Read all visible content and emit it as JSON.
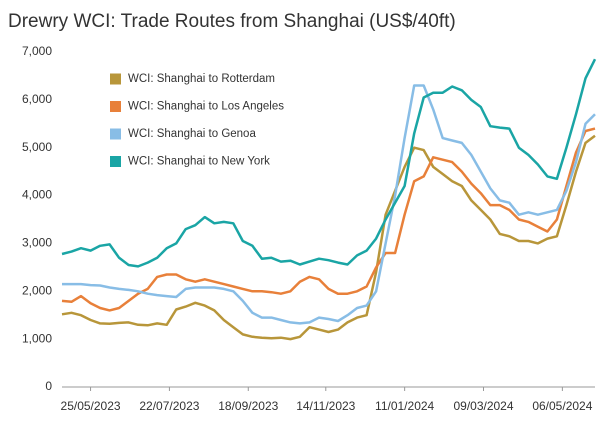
{
  "chart_data": {
    "type": "line",
    "title": "Drewry WCI: Trade Routes from Shanghai (US$/40ft)",
    "x": [
      "04/05/2023",
      "11/05/2023",
      "18/05/2023",
      "25/05/2023",
      "01/06/2023",
      "08/06/2023",
      "15/06/2023",
      "22/06/2023",
      "29/06/2023",
      "06/07/2023",
      "13/07/2023",
      "20/07/2023",
      "27/07/2023",
      "03/08/2023",
      "10/08/2023",
      "17/08/2023",
      "24/08/2023",
      "31/08/2023",
      "07/09/2023",
      "14/09/2023",
      "21/09/2023",
      "28/09/2023",
      "05/10/2023",
      "12/10/2023",
      "19/10/2023",
      "26/10/2023",
      "02/11/2023",
      "09/11/2023",
      "16/11/2023",
      "23/11/2023",
      "30/11/2023",
      "07/12/2023",
      "14/12/2023",
      "21/12/2023",
      "28/12/2023",
      "04/01/2024",
      "11/01/2024",
      "18/01/2024",
      "25/01/2024",
      "01/02/2024",
      "08/02/2024",
      "15/02/2024",
      "22/02/2024",
      "29/02/2024",
      "07/03/2024",
      "14/03/2024",
      "21/03/2024",
      "28/03/2024",
      "04/04/2024",
      "11/04/2024",
      "18/04/2024",
      "25/04/2024",
      "02/05/2024",
      "09/05/2024",
      "16/05/2024",
      "23/05/2024",
      "30/05/2024"
    ],
    "xlim": [
      "04/05/2023",
      "30/05/2024"
    ],
    "xticks": [
      "25/05/2023",
      "22/07/2023",
      "18/09/2023",
      "14/11/2023",
      "11/01/2024",
      "09/03/2024",
      "06/05/2024"
    ],
    "ylim": [
      0,
      7000
    ],
    "yticks": [
      0,
      {
        "value": 1000,
        "label": "1,000"
      },
      {
        "value": 2000,
        "label": "2,000"
      },
      {
        "value": 3000,
        "label": "3,000"
      },
      {
        "value": 4000,
        "label": "4,000"
      },
      {
        "value": 5000,
        "label": "5,000"
      },
      {
        "value": 6000,
        "label": "6,000"
      },
      {
        "value": 7000,
        "label": "7,000"
      }
    ],
    "grid": false,
    "series": [
      {
        "name": "WCI: Shanghai to Rotterdam",
        "color": "#b8963a",
        "values": [
          1520,
          1550,
          1500,
          1400,
          1330,
          1320,
          1340,
          1350,
          1300,
          1290,
          1330,
          1300,
          1620,
          1680,
          1760,
          1700,
          1600,
          1400,
          1250,
          1100,
          1050,
          1030,
          1020,
          1030,
          1000,
          1050,
          1250,
          1200,
          1150,
          1200,
          1350,
          1450,
          1500,
          2400,
          3600,
          4100,
          4600,
          5000,
          4950,
          4600,
          4450,
          4300,
          4200,
          3900,
          3700,
          3500,
          3200,
          3150,
          3050,
          3050,
          3000,
          3100,
          3150,
          3800,
          4500,
          5100,
          5250
        ]
      },
      {
        "name": "WCI: Shanghai to Los Angeles",
        "color": "#e8803a",
        "values": [
          1800,
          1780,
          1900,
          1750,
          1650,
          1600,
          1650,
          1800,
          1950,
          2050,
          2300,
          2350,
          2350,
          2250,
          2200,
          2250,
          2200,
          2150,
          2100,
          2050,
          2000,
          2000,
          1980,
          1950,
          2000,
          2200,
          2300,
          2250,
          2050,
          1950,
          1950,
          2000,
          2100,
          2500,
          2800,
          2800,
          3600,
          4300,
          4400,
          4800,
          4750,
          4700,
          4500,
          4250,
          4050,
          3800,
          3800,
          3700,
          3500,
          3450,
          3350,
          3250,
          3500,
          4200,
          4900,
          5350,
          5400
        ]
      },
      {
        "name": "WCI: Shanghai to Genoa",
        "color": "#88bde6",
        "values": [
          2150,
          2150,
          2150,
          2130,
          2120,
          2080,
          2050,
          2030,
          2000,
          1950,
          1920,
          1900,
          1880,
          2050,
          2080,
          2080,
          2080,
          2050,
          2000,
          1800,
          1550,
          1450,
          1450,
          1400,
          1350,
          1330,
          1350,
          1450,
          1420,
          1380,
          1500,
          1650,
          1700,
          2000,
          3000,
          4000,
          5200,
          6300,
          6300,
          5800,
          5200,
          5150,
          5100,
          4850,
          4500,
          4150,
          3900,
          3850,
          3600,
          3650,
          3600,
          3650,
          3700,
          4100,
          4700,
          5500,
          5700
        ]
      },
      {
        "name": "WCI: Shanghai to New York",
        "color": "#1aa5a5",
        "values": [
          2780,
          2830,
          2900,
          2850,
          2950,
          2980,
          2700,
          2550,
          2520,
          2600,
          2700,
          2900,
          3000,
          3300,
          3380,
          3550,
          3420,
          3450,
          3420,
          3050,
          2950,
          2680,
          2700,
          2620,
          2640,
          2560,
          2620,
          2680,
          2650,
          2600,
          2560,
          2750,
          2850,
          3100,
          3500,
          3850,
          4200,
          5300,
          6050,
          6150,
          6150,
          6280,
          6200,
          6000,
          5850,
          5450,
          5420,
          5400,
          5000,
          4850,
          4650,
          4400,
          4350,
          5000,
          5700,
          6450,
          6850
        ]
      }
    ]
  }
}
